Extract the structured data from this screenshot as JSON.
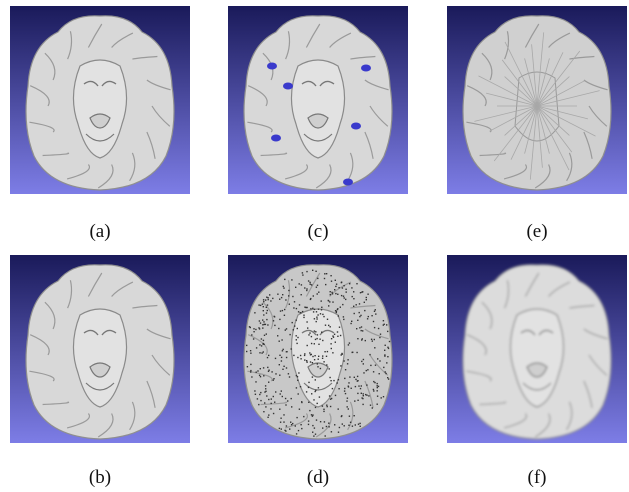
{
  "figure": {
    "panels": [
      {
        "label": "(a)",
        "variant": "smooth-original",
        "colors": {
          "top": "#1a1a5a",
          "bottom": "#7d7de6",
          "mesh": "#d8d8d8"
        }
      },
      {
        "label": "(c)",
        "variant": "holes",
        "colors": {
          "top": "#1a1a5a",
          "bottom": "#7d7de6",
          "mesh": "#d8d8d8",
          "hole": "#3a3acc"
        }
      },
      {
        "label": "(e)",
        "variant": "distorted",
        "colors": {
          "top": "#1a1a5a",
          "bottom": "#7d7de6",
          "mesh": "#d0d0d0"
        }
      },
      {
        "label": "(b)",
        "variant": "smooth-reconstruction",
        "colors": {
          "top": "#1a1a5a",
          "bottom": "#7d7de6",
          "mesh": "#d8d8d8"
        }
      },
      {
        "label": "(d)",
        "variant": "noisy",
        "colors": {
          "top": "#1a1a5a",
          "bottom": "#7d7de6",
          "mesh": "#c8c8c8"
        }
      },
      {
        "label": "(f)",
        "variant": "oversmoothed",
        "colors": {
          "top": "#1a1a5a",
          "bottom": "#7d7de6",
          "mesh": "#dcdcdc"
        }
      }
    ]
  }
}
